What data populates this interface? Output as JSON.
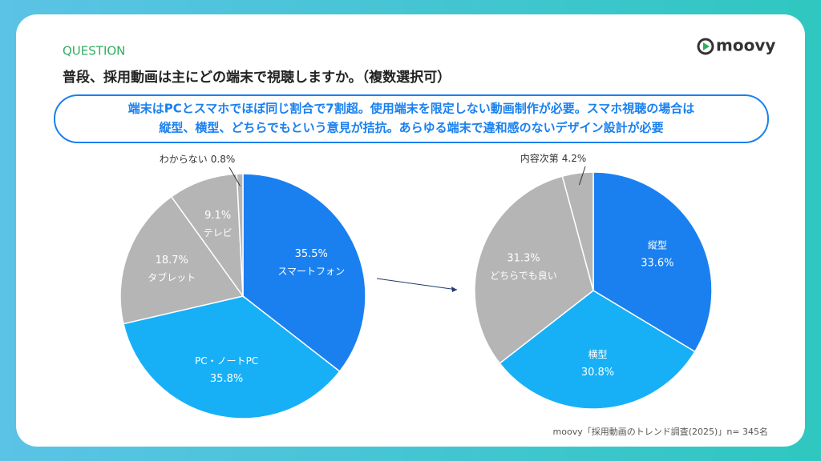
{
  "question": "QUESTION",
  "heading": "普段、採用動画は主にどの端末で視聴しますか。（複数選択可）",
  "summary": [
    "端末はPCとスマホでほぼ同じ割合で7割超。使用端末を限定しない動画制作が必要。スマホ視聴の場合は",
    "縦型、横型、どちらでもという意見が拮抗。あらゆる端末で違和感のないデザイン設計が必要"
  ],
  "logo": "moovy",
  "source": "moovy「採用動画のトレンド調査(2025)」n= 345名",
  "chart_data": [
    {
      "type": "pie",
      "categories": [
        "スマートフォン",
        "PC・ノートPC",
        "タブレット",
        "テレビ",
        "わからない"
      ],
      "values": [
        35.5,
        35.8,
        18.7,
        9.1,
        0.8
      ],
      "value_labels": [
        "35.5%",
        "35.8%",
        "18.7%",
        "9.1%",
        "0.8%"
      ],
      "colors": [
        "#1a80ef",
        "#17b0f7",
        "#b5b5b5",
        "#b5b5b5",
        "#b5b5b5"
      ]
    },
    {
      "type": "pie",
      "categories": [
        "縦型",
        "横型",
        "どちらでも良い",
        "内容次第"
      ],
      "values": [
        33.6,
        30.8,
        31.3,
        4.2
      ],
      "value_labels": [
        "33.6%",
        "30.8%",
        "31.3%",
        "4.2%"
      ],
      "colors": [
        "#1a80ef",
        "#17b0f7",
        "#b5b5b5",
        "#b5b5b5"
      ]
    }
  ]
}
